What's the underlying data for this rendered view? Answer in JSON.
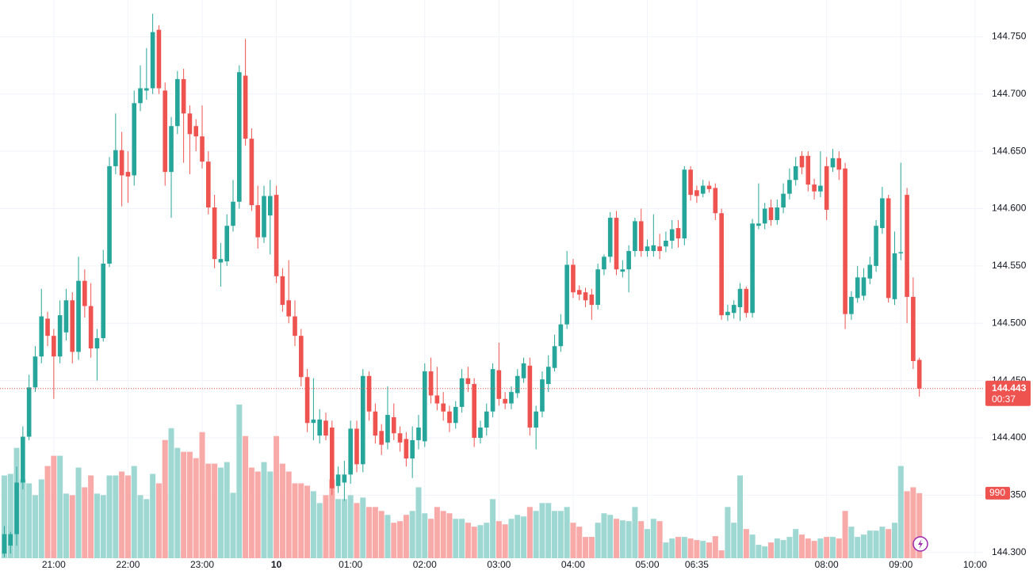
{
  "chart_data": {
    "type": "candlestick",
    "open": [
      144.299,
      144.306,
      144.316,
      144.361,
      144.401,
      144.444,
      144.471,
      144.504,
      144.489,
      144.471,
      144.492,
      144.52,
      144.475,
      144.537,
      144.515,
      144.478,
      144.487,
      144.552,
      144.637,
      144.651,
      144.632,
      144.629,
      144.692,
      144.703,
      144.705,
      144.756,
      144.703,
      144.632,
      144.672,
      144.713,
      144.683,
      144.672,
      144.663,
      144.641,
      144.601,
      144.553,
      144.554,
      144.585,
      144.606,
      144.716,
      144.661,
      144.603,
      144.575,
      144.594,
      144.612,
      144.541,
      144.52,
      144.506,
      144.489,
      144.453,
      144.413,
      144.402,
      144.415,
      144.409,
      144.358,
      144.361,
      144.368,
      144.408,
      144.377,
      144.454,
      144.423,
      144.406,
      144.396,
      144.418,
      144.404,
      144.399,
      144.382,
      144.398,
      144.397,
      144.458,
      144.437,
      144.43,
      144.423,
      144.413,
      144.427,
      144.452,
      144.447,
      144.4,
      144.409,
      144.423,
      144.459,
      144.434,
      144.43,
      144.439,
      144.452,
      144.463,
      144.409,
      144.423,
      144.447,
      144.461,
      144.48,
      144.499,
      144.551,
      144.529,
      144.527,
      144.525,
      144.516,
      144.547,
      144.558,
      144.592,
      144.545,
      144.547,
      144.563,
      144.589,
      144.563,
      144.563,
      144.567,
      144.567,
      144.572,
      144.583,
      144.574,
      144.634,
      144.616,
      144.613,
      144.62,
      144.618,
      144.596,
      144.507,
      144.509,
      144.514,
      144.53,
      144.509,
      144.585,
      144.587,
      144.601,
      144.59,
      144.601,
      144.613,
      144.625,
      144.646,
      144.646,
      144.621,
      144.615,
      144.637,
      144.636,
      144.644,
      144.635,
      144.508,
      144.522,
      144.524,
      144.539,
      144.55,
      144.583,
      144.609,
      144.521,
      144.561,
      144.612,
      144.523,
      144.468
    ],
    "high": [
      144.323,
      144.318,
      144.375,
      144.41,
      144.455,
      144.48,
      144.53,
      144.51,
      144.495,
      144.52,
      144.53,
      144.527,
      144.558,
      144.547,
      144.535,
      144.495,
      144.564,
      144.645,
      144.683,
      144.667,
      144.65,
      144.703,
      144.725,
      144.74,
      144.77,
      144.76,
      144.71,
      144.68,
      144.72,
      144.722,
      144.69,
      144.678,
      144.69,
      144.65,
      144.612,
      144.57,
      144.595,
      144.625,
      144.725,
      144.748,
      144.67,
      144.62,
      144.62,
      144.625,
      144.62,
      144.548,
      144.555,
      144.52,
      144.495,
      144.46,
      144.452,
      144.425,
      144.422,
      144.415,
      144.375,
      144.38,
      144.415,
      144.415,
      144.46,
      144.458,
      144.43,
      144.412,
      144.445,
      144.43,
      144.41,
      144.405,
      144.41,
      144.42,
      144.465,
      144.47,
      144.462,
      144.44,
      144.428,
      144.432,
      144.46,
      144.462,
      144.452,
      144.415,
      144.43,
      144.465,
      144.483,
      144.44,
      144.445,
      144.46,
      144.47,
      144.47,
      144.428,
      144.458,
      144.472,
      144.49,
      144.508,
      144.563,
      144.556,
      144.533,
      144.531,
      144.53,
      144.552,
      144.56,
      144.597,
      144.598,
      144.555,
      144.568,
      144.592,
      144.6,
      144.573,
      144.595,
      144.578,
      144.58,
      144.59,
      144.59,
      144.637,
      144.637,
      144.62,
      144.625,
      144.624,
      144.622,
      144.6,
      144.516,
      144.52,
      144.535,
      144.532,
      144.591,
      144.622,
      144.605,
      144.608,
      144.608,
      144.622,
      144.635,
      144.645,
      144.65,
      144.65,
      144.626,
      144.65,
      144.645,
      144.652,
      144.65,
      144.64,
      144.528,
      144.55,
      144.548,
      144.558,
      144.59,
      144.619,
      144.612,
      144.58,
      144.64,
      144.618,
      144.54,
      144.47
    ],
    "low": [
      144.296,
      144.299,
      144.306,
      144.355,
      144.398,
      144.44,
      144.465,
      144.48,
      144.434,
      144.465,
      144.485,
      144.465,
      144.468,
      144.505,
      144.47,
      144.45,
      144.484,
      144.549,
      144.63,
      144.602,
      144.605,
      144.62,
      144.685,
      144.695,
      144.7,
      144.7,
      144.62,
      144.592,
      144.665,
      144.64,
      144.63,
      144.65,
      144.635,
      144.595,
      144.548,
      144.532,
      144.55,
      144.58,
      144.6,
      144.655,
      144.598,
      144.565,
      144.57,
      144.56,
      144.535,
      144.51,
      144.5,
      144.48,
      144.445,
      144.405,
      144.398,
      144.395,
      144.398,
      144.35,
      144.352,
      144.345,
      144.36,
      144.37,
      144.37,
      144.415,
      144.395,
      144.385,
      144.39,
      144.398,
      144.388,
      144.375,
      144.365,
      144.39,
      144.392,
      144.43,
      144.424,
      144.415,
      144.405,
      144.408,
      144.422,
      144.44,
      144.392,
      144.395,
      144.402,
      144.418,
      144.428,
      144.425,
      144.425,
      144.435,
      144.448,
      144.402,
      144.39,
      144.418,
      144.44,
      144.458,
      144.475,
      144.495,
      144.522,
      144.52,
      144.514,
      144.503,
      144.512,
      144.542,
      144.553,
      144.542,
      144.54,
      144.527,
      144.558,
      144.558,
      144.558,
      144.558,
      144.556,
      144.562,
      144.565,
      144.566,
      144.568,
      144.607,
      144.605,
      144.61,
      144.614,
      144.59,
      144.503,
      144.502,
      144.504,
      144.502,
      144.505,
      144.505,
      144.582,
      144.582,
      144.585,
      144.586,
      144.596,
      144.608,
      144.62,
      144.63,
      144.615,
      144.608,
      144.61,
      144.59,
      144.632,
      144.625,
      144.495,
      144.503,
      144.518,
      144.52,
      144.534,
      144.545,
      144.578,
      144.518,
      144.516,
      144.555,
      144.5,
      144.46,
      144.436
    ],
    "close": [
      144.316,
      144.316,
      144.361,
      144.401,
      144.444,
      144.471,
      144.506,
      144.489,
      144.471,
      144.507,
      144.52,
      144.475,
      144.537,
      144.515,
      144.478,
      144.487,
      144.552,
      144.637,
      144.651,
      144.629,
      144.628,
      144.692,
      144.705,
      144.705,
      144.754,
      144.705,
      144.632,
      144.672,
      144.713,
      144.683,
      144.665,
      144.663,
      144.641,
      144.601,
      144.556,
      144.556,
      144.585,
      144.606,
      144.719,
      144.661,
      144.603,
      144.575,
      144.611,
      144.611,
      144.541,
      144.516,
      144.506,
      144.489,
      144.453,
      144.413,
      144.416,
      144.416,
      144.402,
      144.356,
      144.368,
      144.368,
      144.408,
      144.377,
      144.454,
      144.423,
      144.402,
      144.394,
      144.42,
      144.404,
      144.396,
      144.382,
      144.398,
      144.409,
      144.458,
      144.437,
      144.43,
      144.423,
      144.413,
      144.427,
      144.452,
      144.447,
      144.4,
      144.409,
      144.423,
      144.46,
      144.434,
      144.43,
      144.44,
      144.454,
      144.465,
      144.409,
      144.423,
      144.451,
      144.462,
      144.48,
      144.499,
      144.551,
      144.527,
      144.525,
      144.52,
      144.516,
      144.547,
      144.558,
      144.592,
      144.547,
      144.547,
      144.563,
      144.589,
      144.563,
      144.567,
      144.568,
      144.563,
      144.572,
      144.582,
      144.574,
      144.634,
      144.612,
      144.611,
      144.62,
      144.617,
      144.596,
      144.507,
      144.51,
      144.516,
      144.53,
      144.509,
      144.587,
      144.587,
      144.6,
      144.59,
      144.601,
      144.613,
      144.625,
      144.637,
      144.636,
      144.621,
      144.615,
      144.62,
      144.599,
      144.644,
      144.634,
      144.508,
      144.523,
      144.54,
      144.54,
      144.551,
      144.585,
      144.609,
      144.522,
      144.561,
      144.562,
      144.523,
      144.467,
      144.443
    ],
    "volume": [
      1260,
      1284,
      1680,
      1200,
      1140,
      960,
      1200,
      1404,
      1560,
      1560,
      984,
      960,
      1380,
      1080,
      1260,
      984,
      960,
      1260,
      1260,
      1320,
      1260,
      1404,
      960,
      900,
      1284,
      1140,
      1800,
      1980,
      1680,
      1620,
      1620,
      1524,
      1920,
      1440,
      1440,
      1380,
      1464,
      996,
      2340,
      1860,
      1380,
      1320,
      1464,
      1320,
      1860,
      1440,
      1320,
      1140,
      1140,
      1104,
      1020,
      840,
      960,
      1200,
      900,
      900,
      960,
      840,
      924,
      780,
      780,
      720,
      660,
      540,
      564,
      660,
      720,
      1080,
      684,
      600,
      780,
      720,
      684,
      600,
      600,
      540,
      480,
      504,
      540,
      900,
      564,
      516,
      600,
      660,
      636,
      780,
      720,
      840,
      840,
      720,
      720,
      780,
      540,
      480,
      324,
      324,
      540,
      684,
      660,
      600,
      576,
      564,
      780,
      564,
      444,
      600,
      564,
      240,
      300,
      324,
      324,
      300,
      276,
      264,
      240,
      336,
      120,
      780,
      540,
      1260,
      444,
      360,
      204,
      180,
      240,
      300,
      276,
      324,
      444,
      360,
      300,
      264,
      300,
      324,
      324,
      300,
      720,
      480,
      324,
      360,
      420,
      420,
      480,
      444,
      540,
      1404,
      1020,
      1080,
      990
    ],
    "up_color": "#26a69a",
    "down_color": "#ef5350",
    "volume_up_color": "#9fd8d2",
    "volume_down_color": "#f7aaa8",
    "ylim": [
      144.295,
      144.782
    ],
    "yticks": [
      {
        "value": 144.3,
        "label": "144.300"
      },
      {
        "value": 144.35,
        "label": "144.350"
      },
      {
        "value": 144.4,
        "label": "144.400"
      },
      {
        "value": 144.45,
        "label": "144.450"
      },
      {
        "value": 144.5,
        "label": "144.500"
      },
      {
        "value": 144.55,
        "label": "144.550"
      },
      {
        "value": 144.6,
        "label": "144.600"
      },
      {
        "value": 144.65,
        "label": "144.650"
      },
      {
        "value": 144.7,
        "label": "144.700"
      },
      {
        "value": 144.75,
        "label": "144.750"
      }
    ],
    "volume_ylim": [
      0,
      8500
    ],
    "xlim": [
      -0.7,
      158.3
    ],
    "xticks": [
      {
        "value": 8,
        "label": "21:00"
      },
      {
        "value": 20,
        "label": "22:00"
      },
      {
        "value": 32,
        "label": "23:00"
      },
      {
        "value": 44,
        "label": "10"
      },
      {
        "value": 56,
        "label": "01:00"
      },
      {
        "value": 68,
        "label": "02:00"
      },
      {
        "value": 80,
        "label": "03:00"
      },
      {
        "value": 92,
        "label": "04:00"
      },
      {
        "value": 104,
        "label": "05:00"
      },
      {
        "value": 112,
        "label": "06:35"
      },
      {
        "value": 133,
        "label": "08:00"
      },
      {
        "value": 145,
        "label": "09:00"
      },
      {
        "value": 157,
        "label": "10:00"
      }
    ],
    "countdown": "00:37",
    "grid": true
  }
}
